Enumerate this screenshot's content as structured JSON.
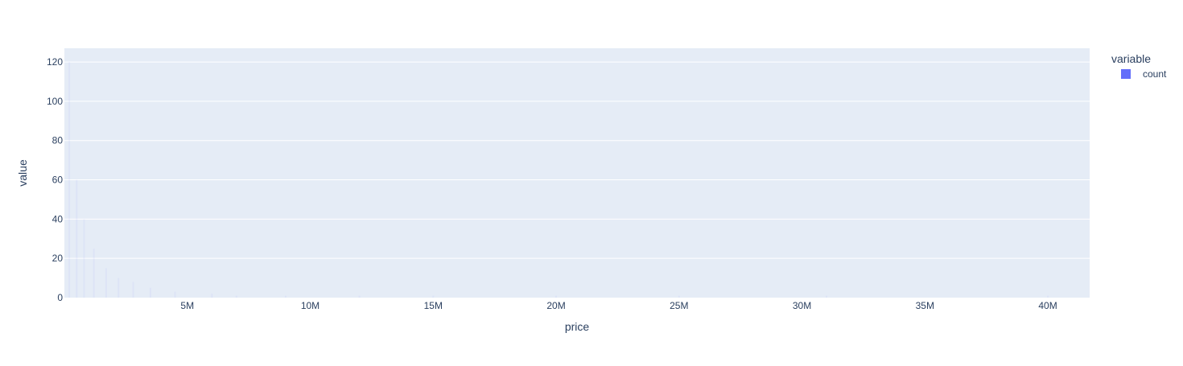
{
  "chart_data": {
    "type": "bar",
    "title": "",
    "xlabel": "price",
    "ylabel": "value",
    "xlim": [
      0,
      41700000
    ],
    "ylim": [
      0,
      127
    ],
    "x_ticks": [
      {
        "value": 5000000,
        "label": "5M"
      },
      {
        "value": 10000000,
        "label": "10M"
      },
      {
        "value": 15000000,
        "label": "15M"
      },
      {
        "value": 20000000,
        "label": "20M"
      },
      {
        "value": 25000000,
        "label": "25M"
      },
      {
        "value": 30000000,
        "label": "30M"
      },
      {
        "value": 35000000,
        "label": "35M"
      },
      {
        "value": 40000000,
        "label": "40M"
      }
    ],
    "y_ticks": [
      {
        "value": 0,
        "label": "0"
      },
      {
        "value": 20,
        "label": "20"
      },
      {
        "value": 40,
        "label": "40"
      },
      {
        "value": 60,
        "label": "60"
      },
      {
        "value": 80,
        "label": "80"
      },
      {
        "value": 100,
        "label": "100"
      },
      {
        "value": 120,
        "label": "120"
      }
    ],
    "grid": true,
    "legend": {
      "title": "variable",
      "position": "top-right",
      "items": [
        {
          "name": "count",
          "color": "#636efa"
        }
      ]
    },
    "series": [
      {
        "name": "count",
        "color": "#636efa",
        "points": [
          {
            "x": 200000,
            "y": 120
          },
          {
            "x": 500000,
            "y": 60
          },
          {
            "x": 800000,
            "y": 40
          },
          {
            "x": 1200000,
            "y": 25
          },
          {
            "x": 1700000,
            "y": 15
          },
          {
            "x": 2200000,
            "y": 10
          },
          {
            "x": 2800000,
            "y": 8
          },
          {
            "x": 3500000,
            "y": 5
          },
          {
            "x": 4500000,
            "y": 3
          },
          {
            "x": 6000000,
            "y": 2
          },
          {
            "x": 7000000,
            "y": 1
          },
          {
            "x": 9000000,
            "y": 1
          },
          {
            "x": 12000000,
            "y": 1
          },
          {
            "x": 15000000,
            "y": 1
          },
          {
            "x": 20000000,
            "y": 1
          },
          {
            "x": 25000000,
            "y": 1
          },
          {
            "x": 31000000,
            "y": 1
          },
          {
            "x": 40000000,
            "y": 1
          }
        ]
      }
    ]
  }
}
